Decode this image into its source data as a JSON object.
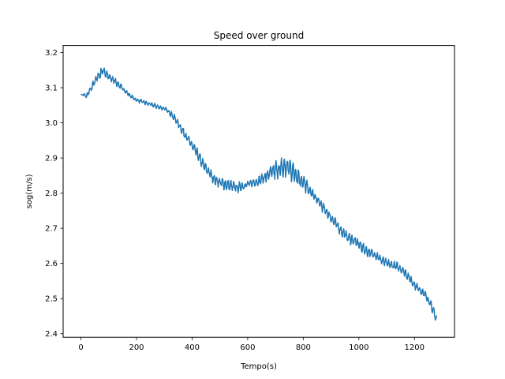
{
  "chart_data": {
    "type": "line",
    "title": "Speed over ground",
    "xlabel": "Tempo(s)",
    "ylabel": "sog(m/s)",
    "xlim": [
      -64,
      1344
    ],
    "ylim": [
      2.39,
      3.22
    ],
    "x_ticks": [
      0,
      200,
      400,
      600,
      800,
      1000,
      1200
    ],
    "y_ticks": [
      2.4,
      2.5,
      2.6,
      2.7,
      2.8,
      2.9,
      3.0,
      3.1,
      3.2
    ],
    "x_tick_labels": [
      "0",
      "200",
      "400",
      "600",
      "800",
      "1000",
      "1200"
    ],
    "y_tick_labels": [
      "2.4",
      "2.5",
      "2.6",
      "2.7",
      "2.8",
      "2.9",
      "3.0",
      "3.1",
      "3.2"
    ],
    "grid": false,
    "legend": "none",
    "line_color": "#1f77b4",
    "series": [
      {
        "x": [
          0,
          10,
          20,
          30,
          40,
          50,
          60,
          70,
          80,
          90,
          100,
          120,
          140,
          160,
          180,
          200,
          220,
          240,
          260,
          280,
          300,
          320,
          340,
          360,
          380,
          400,
          420,
          440,
          460,
          480,
          500,
          520,
          540,
          560,
          580,
          600,
          620,
          640,
          660,
          680,
          700,
          720,
          740,
          760,
          780,
          800,
          820,
          840,
          860,
          880,
          900,
          920,
          940,
          960,
          980,
          1000,
          1020,
          1040,
          1060,
          1080,
          1100,
          1120,
          1140,
          1160,
          1180,
          1200,
          1220,
          1240,
          1260,
          1280
        ],
        "y": [
          3.08,
          3.08,
          3.075,
          3.09,
          3.1,
          3.12,
          3.13,
          3.14,
          3.15,
          3.14,
          3.13,
          3.12,
          3.105,
          3.09,
          3.075,
          3.065,
          3.06,
          3.055,
          3.05,
          3.045,
          3.04,
          3.03,
          3.01,
          2.985,
          2.96,
          2.935,
          2.91,
          2.88,
          2.86,
          2.84,
          2.83,
          2.825,
          2.82,
          2.815,
          2.82,
          2.825,
          2.83,
          2.835,
          2.845,
          2.855,
          2.865,
          2.87,
          2.875,
          2.865,
          2.85,
          2.83,
          2.81,
          2.79,
          2.77,
          2.75,
          2.73,
          2.71,
          2.69,
          2.675,
          2.665,
          2.655,
          2.64,
          2.63,
          2.625,
          2.61,
          2.6,
          2.595,
          2.59,
          2.58,
          2.56,
          2.54,
          2.525,
          2.51,
          2.48,
          2.44
        ],
        "noise_amplitude": [
          0,
          0.004,
          0.006,
          0.008,
          0.01,
          0.012,
          0.014,
          0.016,
          0.016,
          0.014,
          0.012,
          0.01,
          0.008,
          0.006,
          0.006,
          0.006,
          0.006,
          0.006,
          0.006,
          0.006,
          0.006,
          0.008,
          0.01,
          0.012,
          0.012,
          0.014,
          0.014,
          0.014,
          0.014,
          0.014,
          0.014,
          0.016,
          0.016,
          0.014,
          0.012,
          0.01,
          0.01,
          0.012,
          0.016,
          0.02,
          0.026,
          0.03,
          0.032,
          0.032,
          0.028,
          0.022,
          0.016,
          0.014,
          0.014,
          0.014,
          0.014,
          0.014,
          0.014,
          0.014,
          0.014,
          0.014,
          0.014,
          0.014,
          0.012,
          0.012,
          0.012,
          0.012,
          0.012,
          0.012,
          0.012,
          0.012,
          0.01,
          0.01,
          0.012,
          0.014
        ]
      }
    ]
  }
}
